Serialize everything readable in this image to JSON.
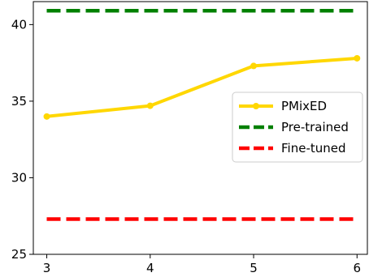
{
  "chart_data": {
    "type": "line",
    "title": "",
    "xlabel": "",
    "ylabel": "",
    "x": [
      3,
      4,
      5,
      6
    ],
    "xticks": [
      "3",
      "4",
      "5",
      "6"
    ],
    "xlim": [
      2.87,
      6.1
    ],
    "yticks": [
      "25",
      "30",
      "35",
      "40"
    ],
    "ylim": [
      25,
      41.5
    ],
    "grid": false,
    "legend_position": "center-right",
    "series": [
      {
        "name": "PMixED",
        "values": [
          34.0,
          34.7,
          37.3,
          37.8
        ],
        "color": "#FFD700",
        "style": "solid",
        "marker": "circle"
      },
      {
        "name": "Pre-trained",
        "values": [
          40.9,
          40.9,
          40.9,
          40.9
        ],
        "color": "#008000",
        "style": "dashed",
        "marker": "none"
      },
      {
        "name": "Fine-tuned",
        "values": [
          27.3,
          27.3,
          27.3,
          27.3
        ],
        "color": "#FF0000",
        "style": "dashed",
        "marker": "none"
      }
    ]
  }
}
